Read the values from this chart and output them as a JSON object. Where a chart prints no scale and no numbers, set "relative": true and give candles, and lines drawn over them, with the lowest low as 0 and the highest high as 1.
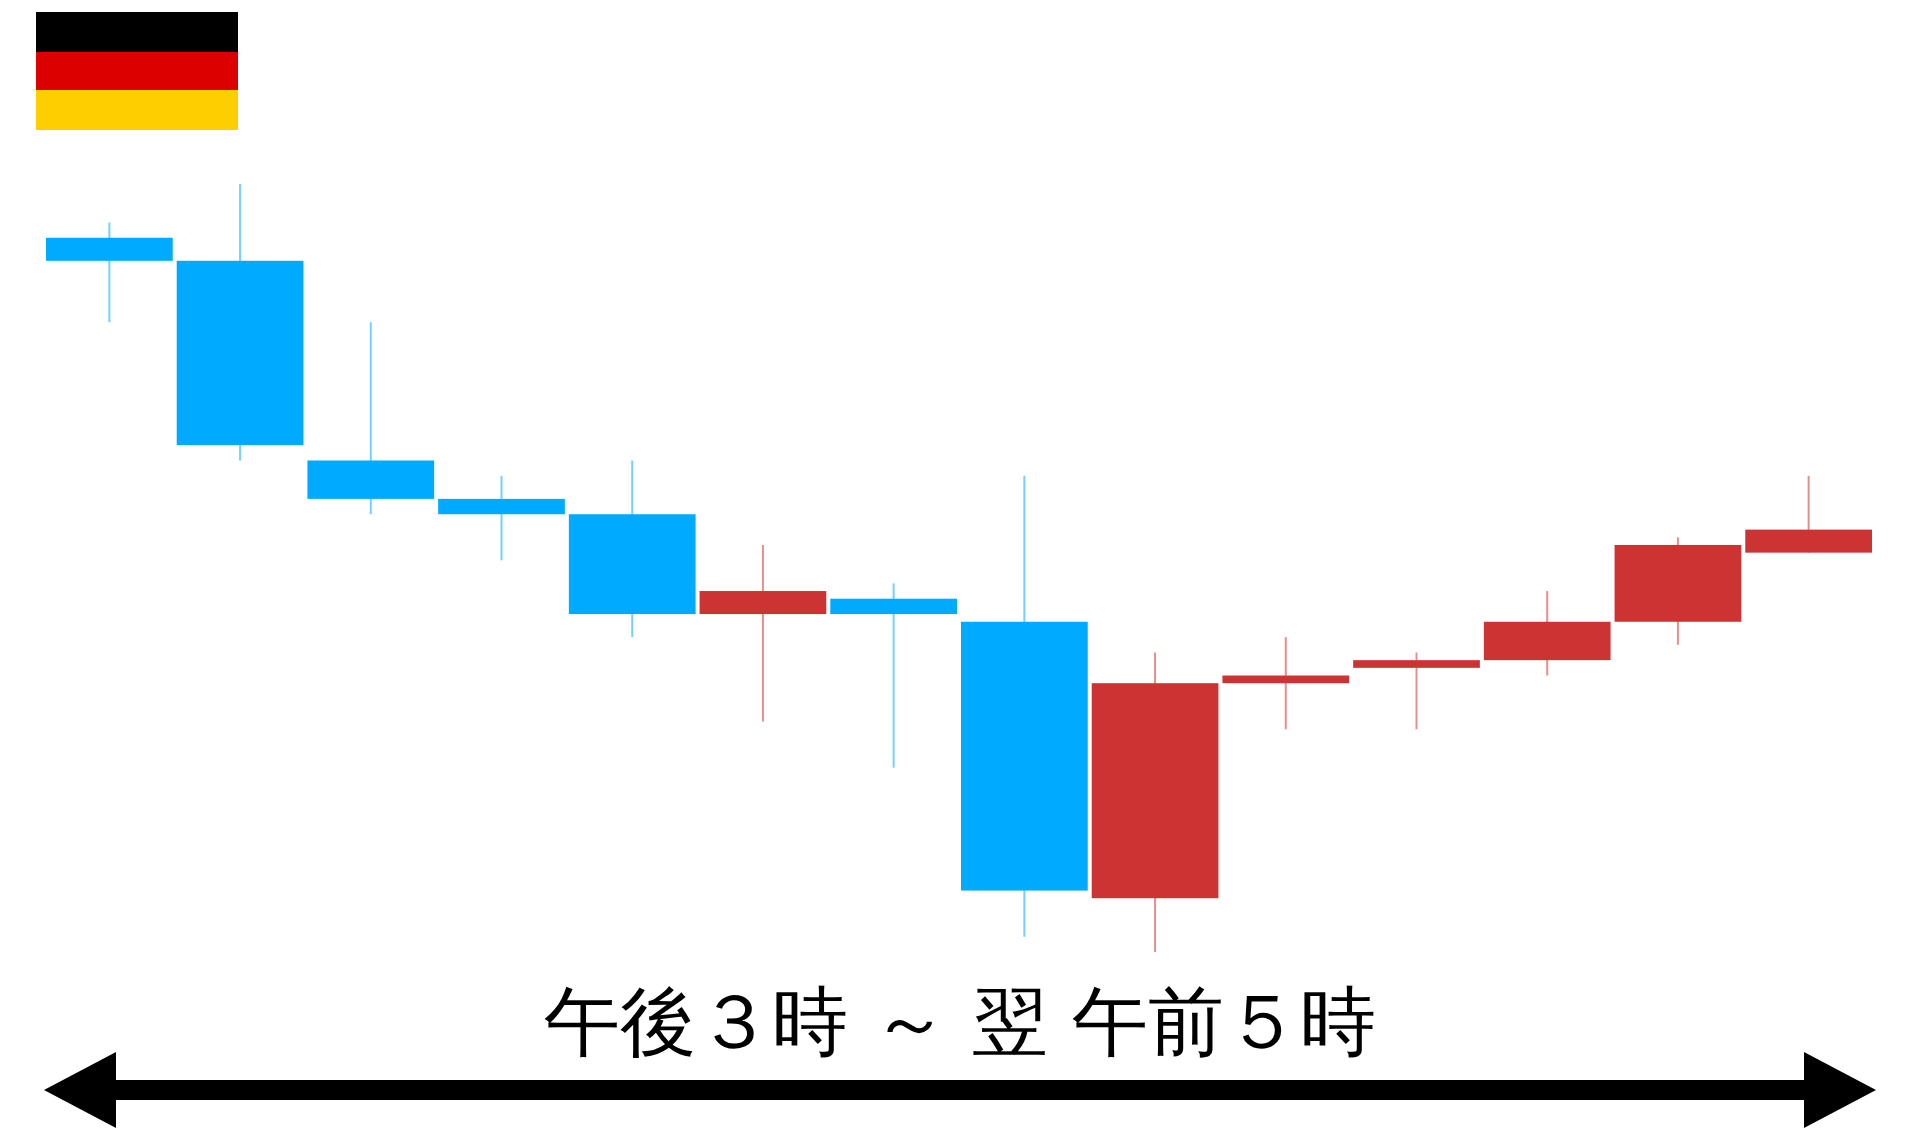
{
  "chart_data": {
    "type": "candlestick",
    "relative": true,
    "xlabel": "午後３時 ～ 翌 午前５時",
    "categories": [
      null,
      null,
      null,
      null,
      null,
      null,
      null,
      null,
      null,
      null,
      null,
      null,
      null,
      null
    ],
    "ohlc": [
      [
        0.93,
        0.95,
        0.82,
        0.9
      ],
      [
        0.9,
        1,
        0.64,
        0.66
      ],
      [
        0.64,
        0.82,
        0.57,
        0.59
      ],
      [
        0.59,
        0.62,
        0.51,
        0.57
      ],
      [
        0.57,
        0.64,
        0.41,
        0.44
      ],
      [
        0.44,
        0.53,
        0.3,
        0.47
      ],
      [
        0.46,
        0.48,
        0.24,
        0.44
      ],
      [
        0.43,
        0.62,
        0.02,
        0.08
      ],
      [
        0.07,
        0.39,
        0,
        0.35
      ],
      [
        0.35,
        0.41,
        0.29,
        0.36
      ],
      [
        0.37,
        0.39,
        0.29,
        0.38
      ],
      [
        0.38,
        0.47,
        0.36,
        0.43
      ],
      [
        0.43,
        0.54,
        0.4,
        0.53
      ],
      [
        0.52,
        0.62,
        0.52,
        0.55
      ]
    ],
    "colors": [
      "#00aaff",
      "#00aaff",
      "#00aaff",
      "#00aaff",
      "#00aaff",
      "#cc3333",
      "#00aaff",
      "#00aaff",
      "#cc3333",
      "#cc3333",
      "#cc3333",
      "#cc3333",
      "#cc3333",
      "#cc3333"
    ]
  }
}
